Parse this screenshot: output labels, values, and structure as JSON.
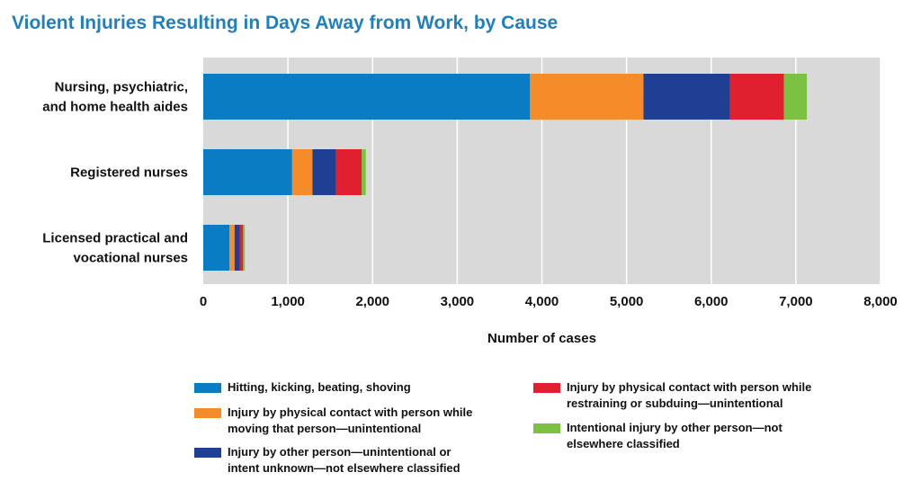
{
  "chart_data": {
    "type": "bar",
    "orientation": "horizontal",
    "stacked": true,
    "title": "Violent Injuries Resulting in Days Away from Work, by Cause",
    "xlabel": "Number of cases",
    "ylabel": "",
    "xlim": [
      0,
      8000
    ],
    "xticks": [
      0,
      1000,
      2000,
      3000,
      4000,
      5000,
      6000,
      7000,
      8000
    ],
    "xtick_labels": [
      "0",
      "1,000",
      "2,000",
      "3,000",
      "4,000",
      "5,000",
      "6,000",
      "7,000",
      "8,000"
    ],
    "categories": [
      "Nursing, psychiatric,\nand home health aides",
      "Registered nurses",
      "Licensed practical and\nvocational nurses"
    ],
    "grid": true,
    "legend_position": "bottom",
    "series": [
      {
        "name": "Hitting, kicking, beating, shoving",
        "color": "#0a7cc4",
        "values": [
          3860,
          1050,
          310
        ]
      },
      {
        "name": "Injury by physical contact with person while\nmoving that person—unintentional",
        "color": "#f68b2a",
        "values": [
          1340,
          240,
          60
        ]
      },
      {
        "name": "Injury by other person—unintentional or\nintent unknown—not elsewhere classified",
        "color": "#1f3f94",
        "values": [
          1020,
          280,
          60
        ]
      },
      {
        "name": "Injury by physical contact with person while\nrestraining or subduing—unintentional",
        "color": "#e0202e",
        "values": [
          640,
          300,
          40
        ]
      },
      {
        "name": "Intentional injury by other person—not\nelsewhere classified",
        "color": "#7cc242",
        "values": [
          270,
          50,
          20
        ]
      }
    ]
  }
}
